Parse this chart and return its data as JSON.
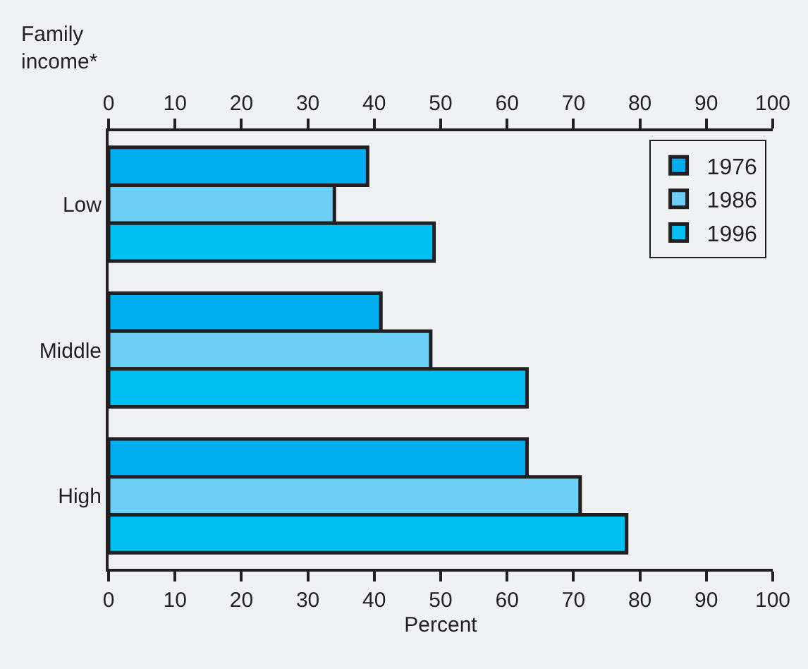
{
  "chart_data": {
    "type": "bar",
    "orientation": "horizontal",
    "ylabel": "Family income*",
    "xlabel": "Percent",
    "categories": [
      "Low",
      "Middle",
      "High"
    ],
    "series": [
      {
        "name": "1976",
        "color": "#00aeef",
        "values": [
          39,
          41,
          63
        ]
      },
      {
        "name": "1986",
        "color": "#6dcff6",
        "values": [
          34,
          48.5,
          71
        ]
      },
      {
        "name": "1996",
        "color": "#00bff3",
        "values": [
          49,
          63,
          78
        ]
      }
    ],
    "xlim": [
      0,
      100
    ],
    "xticks": [
      0,
      10,
      20,
      30,
      40,
      50,
      60,
      70,
      80,
      90,
      100
    ],
    "x2lim": [
      0,
      100
    ],
    "x2ticks": [
      0,
      10,
      20,
      30,
      40,
      50,
      60,
      70,
      80,
      90,
      100
    ],
    "legend": "top right",
    "grid": false
  }
}
